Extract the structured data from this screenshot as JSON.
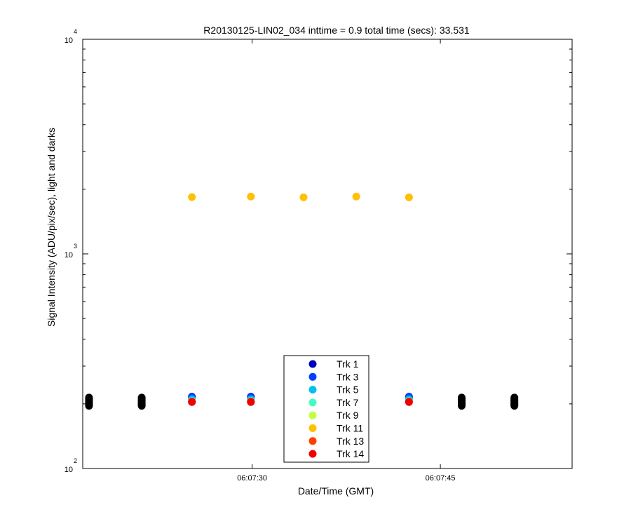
{
  "chart_data": {
    "type": "scatter",
    "title": "R20130125-LIN02_034 inttime = 0.9 total time (secs): 33.531",
    "xlabel": "Date/Time (GMT)",
    "ylabel": "Signal Intensity (ADU/pix/sec), light and darks",
    "x_scale": "time",
    "y_scale": "log",
    "xlim": [
      "06:07:16.5",
      "06:07:55.5"
    ],
    "ylim": [
      100,
      10000
    ],
    "x_ticks": [
      {
        "value": "06:07:30",
        "label": "06:07:30"
      },
      {
        "value": "06:07:45",
        "label": "06:07:45"
      }
    ],
    "y_ticks": [
      {
        "value": 100,
        "base": "10",
        "exp": "2"
      },
      {
        "value": 1000,
        "base": "10",
        "exp": "3"
      },
      {
        "value": 10000,
        "base": "10",
        "exp": "4"
      }
    ],
    "grid": false,
    "legend_position": "bottom-center",
    "light_times": [
      "06:07:25.2",
      "06:07:29.9",
      "06:07:34.1",
      "06:07:38.3",
      "06:07:42.5"
    ],
    "dark_times": [
      "06:07:17.0",
      "06:07:21.2",
      "06:07:46.7",
      "06:07:50.9"
    ],
    "series": [
      {
        "name": "Trk 1",
        "color": "#0000c0",
        "values": [
          216,
          216,
          null,
          null,
          216
        ]
      },
      {
        "name": "Trk 3",
        "color": "#0040ff",
        "values": [
          215,
          215,
          null,
          null,
          215
        ]
      },
      {
        "name": "Trk 5",
        "color": "#00c0f0",
        "values": [
          210,
          210,
          null,
          null,
          210
        ]
      },
      {
        "name": "Trk 7",
        "color": "#40ffc0",
        "values": [
          206,
          206,
          null,
          null,
          206
        ]
      },
      {
        "name": "Trk 9",
        "color": "#c0ff40",
        "values": [
          205,
          205,
          null,
          null,
          205
        ]
      },
      {
        "name": "Trk 11",
        "color": "#ffc000",
        "values": [
          1840,
          1850,
          1835,
          1850,
          1835
        ]
      },
      {
        "name": "Trk 13",
        "color": "#ff4000",
        "values": [
          205,
          205,
          null,
          null,
          205
        ]
      },
      {
        "name": "Trk 14",
        "color": "#f00000",
        "values": [
          204,
          204,
          null,
          null,
          204
        ]
      }
    ],
    "dark_series": {
      "color": "#000000",
      "values": [
        196,
        198,
        200,
        202,
        204,
        206,
        208,
        211,
        214
      ]
    }
  }
}
